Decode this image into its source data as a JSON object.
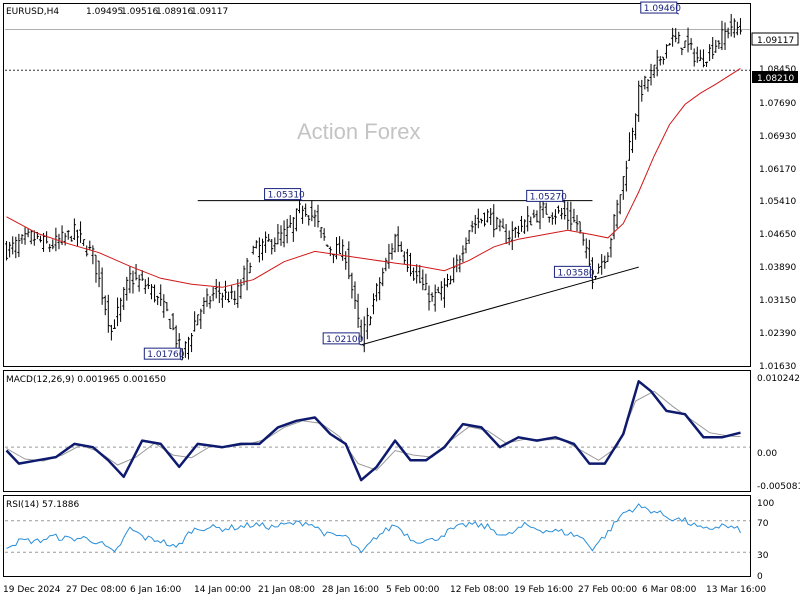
{
  "chart_data": [
    {
      "type": "candlestick",
      "title": "EURUSD,H4",
      "ohlc_readout": [
        "1.09495",
        "1.09516",
        "1.08916",
        "1.09117"
      ],
      "watermark": "Action Forex",
      "x_ticks": [
        "19 Dec 2024",
        "27 Dec 08:00",
        "6 Jan 16:00",
        "14 Jan 00:00",
        "21 Jan 08:00",
        "28 Jan 16:00",
        "5 Feb 00:00",
        "12 Feb 08:00",
        "19 Feb 16:00",
        "27 Feb 00:00",
        "6 Mar 08:00",
        "13 Mar 16:00"
      ],
      "y_ticks": [
        "1.08450",
        "1.07690",
        "1.06930",
        "1.06170",
        "1.05410",
        "1.04650",
        "1.03890",
        "1.03150",
        "1.02390",
        "1.01630"
      ],
      "ylim": [
        1.0163,
        1.0955
      ],
      "price_labels": {
        "current": "1.09117",
        "level": "1.08210"
      },
      "current_price": 1.09117,
      "level_price": 1.0821,
      "annotations": [
        {
          "text": "1.09460",
          "bar": 218,
          "price": 1.0946
        },
        {
          "text": "1.05310",
          "bar": 96,
          "price": 1.0531
        },
        {
          "text": "1.05270",
          "bar": 181,
          "price": 1.0527
        },
        {
          "text": "1.03580",
          "bar": 190,
          "price": 1.0358
        },
        {
          "text": "1.02100",
          "bar": 115,
          "price": 1.021
        },
        {
          "text": "1.01760",
          "bar": 57,
          "price": 1.0176
        }
      ],
      "trendlines": [
        {
          "from": {
            "bar": 62,
            "price": 1.0531
          },
          "to": {
            "bar": 190,
            "price": 1.0531
          }
        },
        {
          "from": {
            "bar": 115,
            "price": 1.021
          },
          "to": {
            "bar": 205,
            "price": 1.0383
          }
        }
      ],
      "close_path": [
        [
          0,
          1.042
        ],
        [
          8,
          1.045
        ],
        [
          14,
          1.043
        ],
        [
          22,
          1.046
        ],
        [
          28,
          1.041
        ],
        [
          34,
          1.024
        ],
        [
          40,
          1.036
        ],
        [
          46,
          1.034
        ],
        [
          52,
          1.028
        ],
        [
          57,
          1.0185
        ],
        [
          62,
          1.028
        ],
        [
          68,
          1.033
        ],
        [
          74,
          1.031
        ],
        [
          80,
          1.042
        ],
        [
          86,
          1.044
        ],
        [
          91,
          1.046
        ],
        [
          96,
          1.052
        ],
        [
          100,
          1.049
        ],
        [
          104,
          1.043
        ],
        [
          110,
          1.041
        ],
        [
          115,
          1.022
        ],
        [
          120,
          1.033
        ],
        [
          126,
          1.045
        ],
        [
          132,
          1.037
        ],
        [
          138,
          1.031
        ],
        [
          144,
          1.035
        ],
        [
          150,
          1.047
        ],
        [
          156,
          1.05
        ],
        [
          162,
          1.045
        ],
        [
          168,
          1.048
        ],
        [
          174,
          1.051
        ],
        [
          180,
          1.05
        ],
        [
          185,
          1.048
        ],
        [
          190,
          1.0365
        ],
        [
          195,
          1.042
        ],
        [
          200,
          1.058
        ],
        [
          205,
          1.077
        ],
        [
          210,
          1.082
        ],
        [
          215,
          1.089
        ],
        [
          220,
          1.088
        ],
        [
          225,
          1.084
        ],
        [
          230,
          1.088
        ],
        [
          235,
          1.092
        ],
        [
          238,
          1.0912
        ]
      ],
      "ma_path": [
        [
          0,
          1.0495
        ],
        [
          10,
          1.0458
        ],
        [
          20,
          1.0435
        ],
        [
          30,
          1.0415
        ],
        [
          40,
          1.0385
        ],
        [
          50,
          1.0358
        ],
        [
          60,
          1.0345
        ],
        [
          70,
          1.0338
        ],
        [
          80,
          1.0355
        ],
        [
          90,
          1.0395
        ],
        [
          100,
          1.0418
        ],
        [
          110,
          1.0408
        ],
        [
          118,
          1.04
        ],
        [
          126,
          1.0392
        ],
        [
          134,
          1.0385
        ],
        [
          142,
          1.0375
        ],
        [
          150,
          1.0398
        ],
        [
          158,
          1.0428
        ],
        [
          166,
          1.0445
        ],
        [
          174,
          1.0455
        ],
        [
          182,
          1.0465
        ],
        [
          190,
          1.0455
        ],
        [
          195,
          1.0448
        ],
        [
          200,
          1.048
        ],
        [
          205,
          1.055
        ],
        [
          210,
          1.063
        ],
        [
          215,
          1.07
        ],
        [
          220,
          1.0745
        ],
        [
          225,
          1.077
        ],
        [
          230,
          1.079
        ],
        [
          238,
          1.0825
        ]
      ]
    },
    {
      "type": "line",
      "title": "MACD(12,26,9) 0.001965 0.001650",
      "y_ticks": [
        "0.010242",
        "0.00",
        "-0.005081"
      ],
      "ylim": [
        -0.0065,
        0.0108
      ],
      "main_path": [
        [
          0,
          -0.0005
        ],
        [
          4,
          -0.0025
        ],
        [
          10,
          -0.002
        ],
        [
          16,
          -0.0015
        ],
        [
          22,
          0.0005
        ],
        [
          28,
          0.0
        ],
        [
          33,
          -0.002
        ],
        [
          38,
          -0.0045
        ],
        [
          44,
          0.001
        ],
        [
          50,
          0.0005
        ],
        [
          56,
          -0.003
        ],
        [
          62,
          0.0005
        ],
        [
          70,
          0.0
        ],
        [
          76,
          0.0005
        ],
        [
          82,
          0.0005
        ],
        [
          88,
          0.003
        ],
        [
          94,
          0.004
        ],
        [
          100,
          0.0045
        ],
        [
          105,
          0.002
        ],
        [
          110,
          0.0005
        ],
        [
          115,
          -0.005
        ],
        [
          120,
          -0.003
        ],
        [
          126,
          0.001
        ],
        [
          131,
          -0.002
        ],
        [
          136,
          -0.002
        ],
        [
          142,
          0.0
        ],
        [
          148,
          0.0035
        ],
        [
          154,
          0.003
        ],
        [
          160,
          0.0
        ],
        [
          166,
          0.0015
        ],
        [
          172,
          0.001
        ],
        [
          178,
          0.0015
        ],
        [
          184,
          0.0005
        ],
        [
          189,
          -0.0025
        ],
        [
          194,
          -0.0025
        ],
        [
          200,
          0.002
        ],
        [
          205,
          0.01
        ],
        [
          209,
          0.0085
        ],
        [
          214,
          0.0055
        ],
        [
          220,
          0.005
        ],
        [
          226,
          0.0015
        ],
        [
          232,
          0.0015
        ],
        [
          238,
          0.0022
        ]
      ],
      "signal_path": [
        [
          0,
          -0.0002
        ],
        [
          6,
          -0.0018
        ],
        [
          12,
          -0.0021
        ],
        [
          18,
          -0.0012
        ],
        [
          24,
          0.0003
        ],
        [
          30,
          -0.0007
        ],
        [
          36,
          -0.0027
        ],
        [
          42,
          -0.0015
        ],
        [
          48,
          0.0006
        ],
        [
          54,
          -0.0012
        ],
        [
          60,
          -0.0016
        ],
        [
          66,
          0.0001
        ],
        [
          72,
          0.0001
        ],
        [
          78,
          0.0004
        ],
        [
          84,
          0.0012
        ],
        [
          90,
          0.003
        ],
        [
          96,
          0.004
        ],
        [
          102,
          0.0036
        ],
        [
          108,
          0.0016
        ],
        [
          114,
          -0.0025
        ],
        [
          120,
          -0.0035
        ],
        [
          126,
          -0.0005
        ],
        [
          132,
          -0.0012
        ],
        [
          138,
          -0.0015
        ],
        [
          144,
          0.001
        ],
        [
          150,
          0.0031
        ],
        [
          156,
          0.0025
        ],
        [
          162,
          0.0006
        ],
        [
          168,
          0.0012
        ],
        [
          174,
          0.0011
        ],
        [
          180,
          0.0012
        ],
        [
          186,
          -0.0004
        ],
        [
          192,
          -0.002
        ],
        [
          198,
          0.0
        ],
        [
          204,
          0.007
        ],
        [
          210,
          0.0085
        ],
        [
          216,
          0.0062
        ],
        [
          222,
          0.0042
        ],
        [
          228,
          0.0022
        ],
        [
          234,
          0.0017
        ],
        [
          238,
          0.0016
        ]
      ]
    },
    {
      "type": "line",
      "title": "RSI(14) 57.1886",
      "y_ticks": [
        "100",
        "70",
        "30",
        "0"
      ],
      "ylim": [
        0,
        100
      ],
      "levels": [
        70,
        30
      ],
      "path": [
        [
          0,
          38
        ],
        [
          5,
          45
        ],
        [
          10,
          44
        ],
        [
          15,
          50
        ],
        [
          20,
          47
        ],
        [
          25,
          48
        ],
        [
          30,
          43
        ],
        [
          35,
          28
        ],
        [
          40,
          60
        ],
        [
          45,
          48
        ],
        [
          50,
          45
        ],
        [
          55,
          35
        ],
        [
          60,
          58
        ],
        [
          65,
          62
        ],
        [
          70,
          60
        ],
        [
          75,
          62
        ],
        [
          80,
          65
        ],
        [
          86,
          62
        ],
        [
          92,
          66
        ],
        [
          98,
          68
        ],
        [
          104,
          52
        ],
        [
          110,
          50
        ],
        [
          115,
          28
        ],
        [
          120,
          50
        ],
        [
          126,
          65
        ],
        [
          132,
          45
        ],
        [
          138,
          45
        ],
        [
          144,
          58
        ],
        [
          150,
          66
        ],
        [
          156,
          62
        ],
        [
          162,
          50
        ],
        [
          168,
          64
        ],
        [
          174,
          58
        ],
        [
          180,
          56
        ],
        [
          186,
          50
        ],
        [
          190,
          35
        ],
        [
          195,
          55
        ],
        [
          200,
          80
        ],
        [
          205,
          88
        ],
        [
          210,
          82
        ],
        [
          215,
          74
        ],
        [
          220,
          70
        ],
        [
          226,
          58
        ],
        [
          232,
          64
        ],
        [
          238,
          58
        ]
      ]
    }
  ]
}
